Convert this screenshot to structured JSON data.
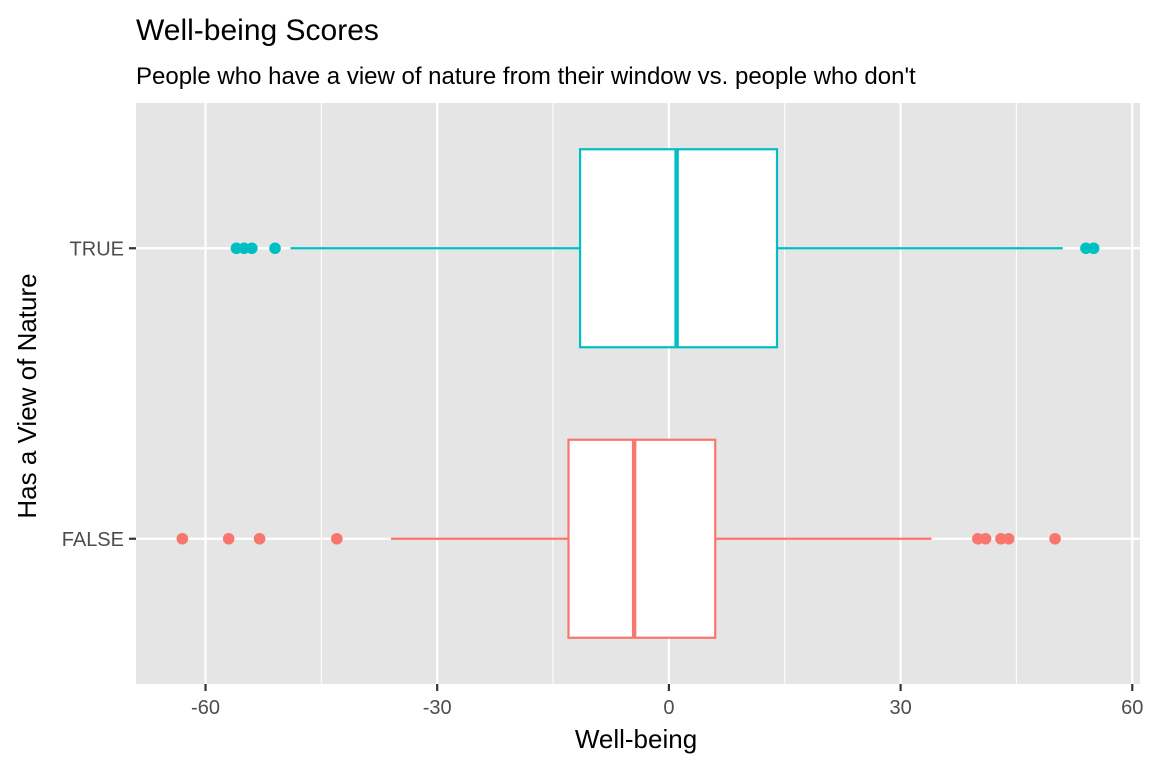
{
  "chart_data": {
    "type": "boxplot",
    "orientation": "horizontal",
    "title": "Well-being Scores",
    "subtitle": "People who have a view of nature from their window vs. people who don't",
    "xlabel": "Well-being",
    "ylabel": "Has a View of Nature",
    "xlim": [
      -69,
      61
    ],
    "x_ticks": [
      -60,
      -30,
      0,
      30,
      60
    ],
    "x_tick_labels": [
      "-60",
      "-30",
      "0",
      "30",
      "60"
    ],
    "categories": [
      "FALSE",
      "TRUE"
    ],
    "grid": true,
    "legend": "none",
    "background": "#e5e5e5",
    "gridline_color": "#ffffff",
    "box_fill": "#ffffff",
    "series": [
      {
        "category": "FALSE",
        "color": "#f8766d",
        "whisker_low": -36,
        "q1": -13,
        "median": -4.5,
        "q3": 6,
        "whisker_high": 34,
        "outliers": [
          -63,
          -57,
          -53,
          -43,
          40,
          41,
          43,
          44,
          50
        ]
      },
      {
        "category": "TRUE",
        "color": "#00bfc4",
        "whisker_low": -49,
        "q1": -11.5,
        "median": 1,
        "q3": 14,
        "whisker_high": 51,
        "outliers": [
          -56,
          -55,
          -54,
          -51,
          54,
          55
        ]
      }
    ]
  }
}
